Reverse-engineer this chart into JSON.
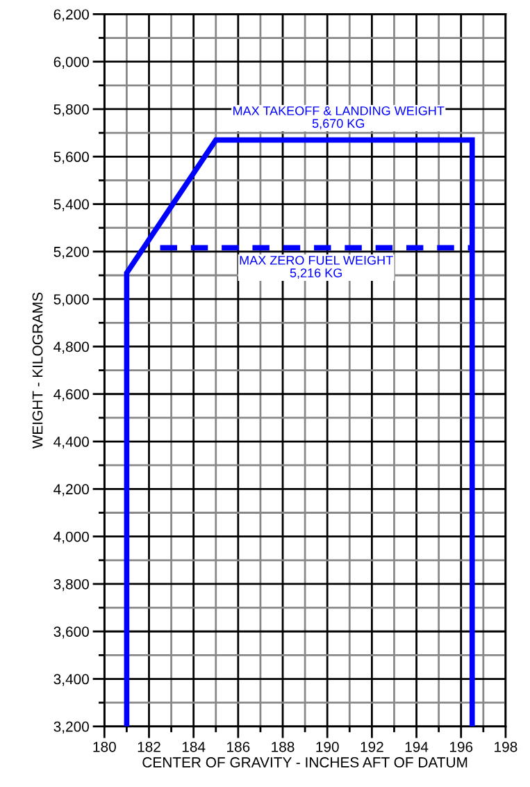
{
  "chart_data": {
    "type": "line",
    "xlabel": "CENTER OF GRAVITY - INCHES AFT OF DATUM",
    "ylabel": "WEIGHT - KILOGRAMS",
    "series": [
      {
        "color": "#0000ff",
        "line_style": "solid",
        "x": [
          181,
          181,
          185,
          196.5,
          196.5
        ],
        "values": [
          3200,
          5110,
          5670,
          5670,
          3200
        ]
      },
      {
        "color": "#0000ff",
        "line_style": "dashed",
        "x": [
          182.5,
          196.5
        ],
        "values": [
          5216,
          5216
        ]
      }
    ],
    "annotations": [
      {
        "text": "MAX TAKEOFF & LANDING WEIGHT\n5,670 KG",
        "x": 190.5,
        "y": 5670
      },
      {
        "text": "MAX ZERO FUEL WEIGHT\n5,216 KG",
        "x": 189.5,
        "y": 5216
      }
    ],
    "xlim": [
      180,
      198
    ],
    "xticks": [
      180,
      182,
      184,
      186,
      188,
      190,
      192,
      194,
      196,
      198
    ],
    "ylim": [
      3200,
      6200
    ],
    "yticks": [
      {
        "value": 3200,
        "label": "3,200"
      },
      {
        "value": 3400,
        "label": "3,400"
      },
      {
        "value": 3600,
        "label": "3,600"
      },
      {
        "value": 3800,
        "label": "3,800"
      },
      {
        "value": 4000,
        "label": "4,000"
      },
      {
        "value": 4200,
        "label": "4,200"
      },
      {
        "value": 4400,
        "label": "4,400"
      },
      {
        "value": 4600,
        "label": "4,600"
      },
      {
        "value": 4800,
        "label": "4,800"
      },
      {
        "value": 5000,
        "label": "5,000"
      },
      {
        "value": 5200,
        "label": "5,200"
      },
      {
        "value": 5400,
        "label": "5,400"
      },
      {
        "value": 5600,
        "label": "5,600"
      },
      {
        "value": 5800,
        "label": "5,800"
      },
      {
        "value": 6000,
        "label": "6,000"
      },
      {
        "value": 6200,
        "label": "6,200"
      }
    ],
    "grid": true,
    "marker": "none"
  }
}
